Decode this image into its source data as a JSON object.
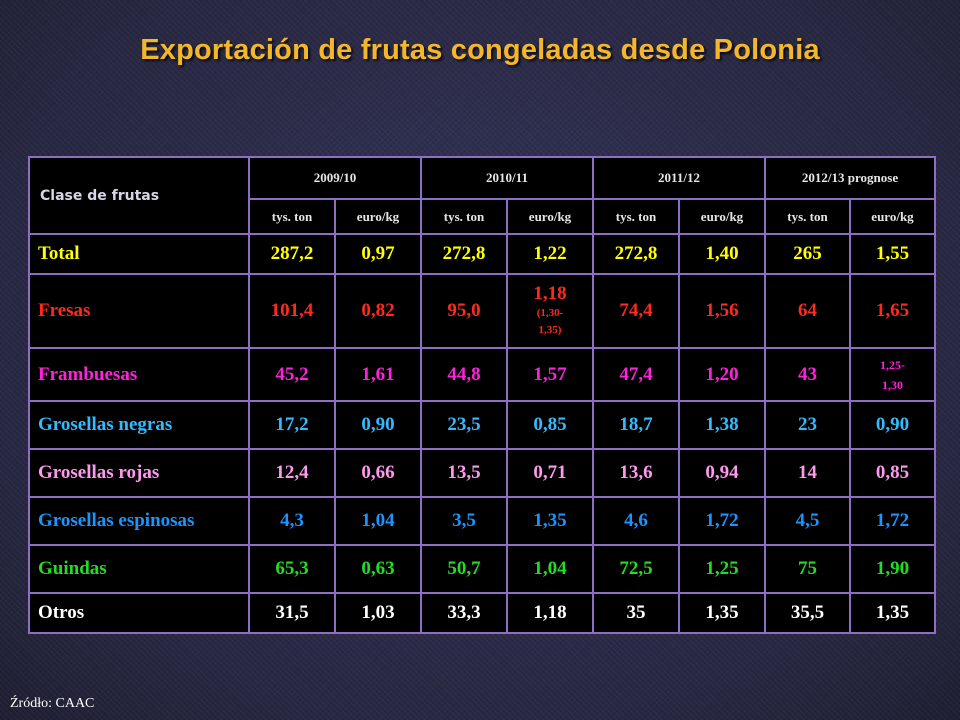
{
  "title": "Exportación de frutas congeladas desde Polonia",
  "table": {
    "header_label": "Clase de frutas",
    "seasons": [
      "2009/10",
      "2010/11",
      "2011/12",
      "2012/13 prognose"
    ],
    "unit_labels": [
      "tys. ton",
      "euro/kg"
    ],
    "rows": [
      {
        "name": "Total",
        "color": "#ffff00",
        "values": [
          "287,2",
          "0,97",
          "272,8",
          "1,22",
          "272,8",
          "1,40",
          "265",
          "1,55"
        ]
      },
      {
        "name": "Fresas",
        "color": "#ff2a1c",
        "values": [
          "101,4",
          "0,82",
          "95,0",
          "1,18",
          "74,4",
          "1,56",
          "64",
          "1,65"
        ],
        "note": "(1,30-",
        "note2": "1,35)"
      },
      {
        "name": "Frambuesas",
        "color": "#ff22dd",
        "values": [
          "45,2",
          "1,61",
          "44,8",
          "1,57",
          "47,4",
          "1,20",
          "43",
          "1,25-"
        ],
        "last2": "1,30"
      },
      {
        "name": "Grosellas negras",
        "color": "#33bbff",
        "values": [
          "17,2",
          "0,90",
          "23,5",
          "0,85",
          "18,7",
          "1,38",
          "23",
          "0,90"
        ]
      },
      {
        "name": "Grosellas rojas",
        "color": "#ff99ee",
        "values": [
          "12,4",
          "0,66",
          "13,5",
          "0,71",
          "13,6",
          "0,94",
          "14",
          "0,85"
        ]
      },
      {
        "name": "Grosellas espinosas",
        "color": "#1a95ff",
        "values": [
          "4,3",
          "1,04",
          "3,5",
          "1,35",
          "4,6",
          "1,72",
          "4,5",
          "1,72"
        ]
      },
      {
        "name": "Guindas",
        "color": "#22dd22",
        "values": [
          "65,3",
          "0,63",
          "50,7",
          "1,04",
          "72,5",
          "1,25",
          "75",
          "1,90"
        ]
      },
      {
        "name": "Otros",
        "color": "#ffffff",
        "values": [
          "31,5",
          "1,03",
          "33,3",
          "1,18",
          "35",
          "1,35",
          "35,5",
          "1,35"
        ]
      }
    ]
  },
  "source": "Źródło: CAAC"
}
